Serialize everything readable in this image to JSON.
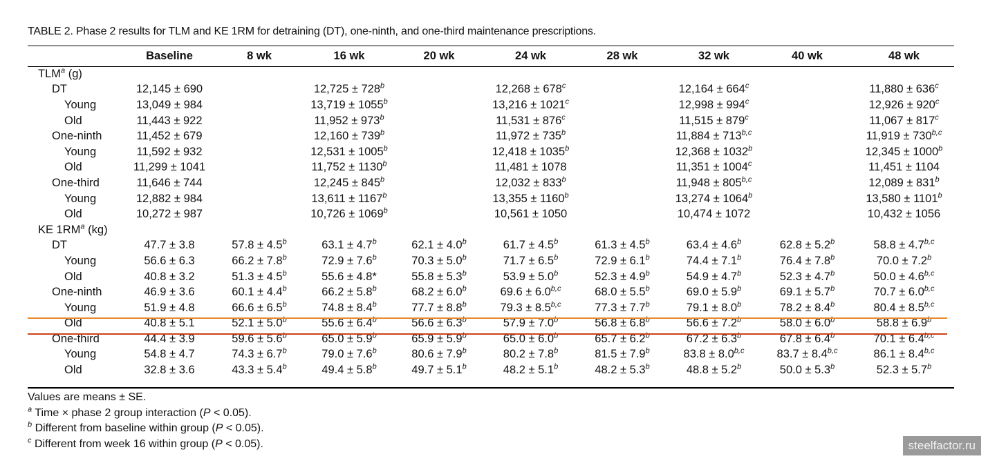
{
  "title": "TABLE 2. Phase 2 results for TLM and KE 1RM for detraining (DT), one-ninth, and one-third maintenance prescriptions.",
  "columns": [
    "",
    "Baseline",
    "8 wk",
    "16 wk",
    "20 wk",
    "24 wk",
    "28 wk",
    "32 wk",
    "40 wk",
    "48 wk"
  ],
  "sections": [
    {
      "label": "TLM",
      "label_sup": "a",
      "unit": " (g)",
      "rows": [
        {
          "label": "DT",
          "level": 1,
          "cells": [
            [
              "12,145 ± 690",
              ""
            ],
            [
              "",
              ""
            ],
            [
              "12,725 ± 728",
              "b"
            ],
            [
              "",
              ""
            ],
            [
              "12,268 ± 678",
              "c"
            ],
            [
              "",
              ""
            ],
            [
              "12,164 ± 664",
              "c"
            ],
            [
              "",
              ""
            ],
            [
              "11,880 ± 636",
              "c"
            ]
          ]
        },
        {
          "label": "Young",
          "level": 2,
          "cells": [
            [
              "13,049 ± 984",
              ""
            ],
            [
              "",
              ""
            ],
            [
              "13,719 ± 1055",
              "b"
            ],
            [
              "",
              ""
            ],
            [
              "13,216 ± 1021",
              "c"
            ],
            [
              "",
              ""
            ],
            [
              "12,998 ± 994",
              "c"
            ],
            [
              "",
              ""
            ],
            [
              "12,926 ± 920",
              "c"
            ]
          ]
        },
        {
          "label": "Old",
          "level": 2,
          "cells": [
            [
              "11,443 ± 922",
              ""
            ],
            [
              "",
              ""
            ],
            [
              "11,952 ± 973",
              "b"
            ],
            [
              "",
              ""
            ],
            [
              "11,531 ± 876",
              "c"
            ],
            [
              "",
              ""
            ],
            [
              "11,515 ± 879",
              "c"
            ],
            [
              "",
              ""
            ],
            [
              "11,067 ± 817",
              "c"
            ]
          ]
        },
        {
          "label": "One-ninth",
          "level": 1,
          "cells": [
            [
              "11,452 ± 679",
              ""
            ],
            [
              "",
              ""
            ],
            [
              "12,160 ± 739",
              "b"
            ],
            [
              "",
              ""
            ],
            [
              "11,972 ± 735",
              "b"
            ],
            [
              "",
              ""
            ],
            [
              "11,884 ± 713",
              "b,c"
            ],
            [
              "",
              ""
            ],
            [
              "11,919 ± 730",
              "b,c"
            ]
          ]
        },
        {
          "label": "Young",
          "level": 2,
          "cells": [
            [
              "11,592 ± 932",
              ""
            ],
            [
              "",
              ""
            ],
            [
              "12,531 ± 1005",
              "b"
            ],
            [
              "",
              ""
            ],
            [
              "12,418 ± 1035",
              "b"
            ],
            [
              "",
              ""
            ],
            [
              "12,368 ± 1032",
              "b"
            ],
            [
              "",
              ""
            ],
            [
              "12,345 ± 1000",
              "b"
            ]
          ]
        },
        {
          "label": "Old",
          "level": 2,
          "cells": [
            [
              "11,299 ± 1041",
              ""
            ],
            [
              "",
              ""
            ],
            [
              "11,752 ± 1130",
              "b"
            ],
            [
              "",
              ""
            ],
            [
              "11,481 ± 1078",
              ""
            ],
            [
              "",
              ""
            ],
            [
              "11,351 ± 1004",
              "c"
            ],
            [
              "",
              ""
            ],
            [
              "11,451 ± 1104",
              ""
            ]
          ]
        },
        {
          "label": "One-third",
          "level": 1,
          "cells": [
            [
              "11,646 ± 744",
              ""
            ],
            [
              "",
              ""
            ],
            [
              "12,245 ± 845",
              "b"
            ],
            [
              "",
              ""
            ],
            [
              "12,032 ± 833",
              "b"
            ],
            [
              "",
              ""
            ],
            [
              "11,948 ± 805",
              "b,c"
            ],
            [
              "",
              ""
            ],
            [
              "12,089 ± 831",
              "b"
            ]
          ]
        },
        {
          "label": "Young",
          "level": 2,
          "cells": [
            [
              "12,882 ± 984",
              ""
            ],
            [
              "",
              ""
            ],
            [
              "13,611 ± 1167",
              "b"
            ],
            [
              "",
              ""
            ],
            [
              "13,355 ± 1160",
              "b"
            ],
            [
              "",
              ""
            ],
            [
              "13,274 ± 1064",
              "b"
            ],
            [
              "",
              ""
            ],
            [
              "13,580 ± 1101",
              "b"
            ]
          ]
        },
        {
          "label": "Old",
          "level": 2,
          "cells": [
            [
              "10,272 ± 987",
              ""
            ],
            [
              "",
              ""
            ],
            [
              "10,726 ± 1069",
              "b"
            ],
            [
              "",
              ""
            ],
            [
              "10,561 ± 1050",
              ""
            ],
            [
              "",
              ""
            ],
            [
              "10,474 ± 1072",
              ""
            ],
            [
              "",
              ""
            ],
            [
              "10,432 ± 1056",
              ""
            ]
          ]
        }
      ]
    },
    {
      "label": "KE 1RM",
      "label_sup": "a",
      "unit": " (kg)",
      "rows": [
        {
          "label": "DT",
          "level": 1,
          "cells": [
            [
              "47.7 ± 3.8",
              ""
            ],
            [
              "57.8 ± 4.5",
              "b"
            ],
            [
              "63.1 ± 4.7",
              "b"
            ],
            [
              "62.1 ± 4.0",
              "b"
            ],
            [
              "61.7 ± 4.5",
              "b"
            ],
            [
              "61.3 ± 4.5",
              "b"
            ],
            [
              "63.4 ± 4.6",
              "b"
            ],
            [
              "62.8 ± 5.2",
              "b"
            ],
            [
              "58.8 ± 4.7",
              "b,c"
            ]
          ]
        },
        {
          "label": "Young",
          "level": 2,
          "cells": [
            [
              "56.6 ± 6.3",
              ""
            ],
            [
              "66.2 ± 7.8",
              "b"
            ],
            [
              "72.9 ± 7.6",
              "b"
            ],
            [
              "70.3 ± 5.0",
              "b"
            ],
            [
              "71.7 ± 6.5",
              "b"
            ],
            [
              "72.9 ± 6.1",
              "b"
            ],
            [
              "74.4 ± 7.1",
              "b"
            ],
            [
              "76.4 ± 7.8",
              "b"
            ],
            [
              "70.0 ± 7.2",
              "b"
            ]
          ]
        },
        {
          "label": "Old",
          "level": 2,
          "cells": [
            [
              "40.8 ± 3.2",
              ""
            ],
            [
              "51.3 ± 4.5",
              "b"
            ],
            [
              "55.6 ± 4.8*",
              ""
            ],
            [
              "55.8 ± 5.3",
              "b"
            ],
            [
              "53.9 ± 5.0",
              "b"
            ],
            [
              "52.3 ± 4.9",
              "b"
            ],
            [
              "54.9 ± 4.7",
              "b"
            ],
            [
              "52.3 ± 4.7",
              "b"
            ],
            [
              "50.0 ± 4.6",
              "b,c"
            ]
          ]
        },
        {
          "label": "One-ninth",
          "level": 1,
          "cells": [
            [
              "46.9 ± 3.6",
              ""
            ],
            [
              "60.1 ± 4.4",
              "b"
            ],
            [
              "66.2 ± 5.8",
              "b"
            ],
            [
              "68.2 ± 6.0",
              "b"
            ],
            [
              "69.6 ± 6.0",
              "b,c"
            ],
            [
              "68.0 ± 5.5",
              "b"
            ],
            [
              "69.0 ± 5.9",
              "b"
            ],
            [
              "69.1 ± 5.7",
              "b"
            ],
            [
              "70.7 ± 6.0",
              "b,c"
            ]
          ]
        },
        {
          "label": "Young",
          "level": 2,
          "cells": [
            [
              "51.9 ± 4.8",
              ""
            ],
            [
              "66.6 ± 6.5",
              "b"
            ],
            [
              "74.8 ± 8.4",
              "b"
            ],
            [
              "77.7 ± 8.8",
              "b"
            ],
            [
              "79.3 ± 8.5",
              "b,c"
            ],
            [
              "77.3 ± 7.7",
              "b"
            ],
            [
              "79.1 ± 8.0",
              "b"
            ],
            [
              "78.2 ± 8.4",
              "b"
            ],
            [
              "80.4 ± 8.5",
              "b,c"
            ]
          ]
        },
        {
          "label": "Old",
          "level": 2,
          "cells": [
            [
              "40.8 ± 5.1",
              ""
            ],
            [
              "52.1 ± 5.0",
              "b"
            ],
            [
              "55.6 ± 6.4",
              "b"
            ],
            [
              "56.6 ± 6.3",
              "b"
            ],
            [
              "57.9 ± 7.0",
              "b"
            ],
            [
              "56.8 ± 6.8",
              "b"
            ],
            [
              "56.6 ± 7.2",
              "b"
            ],
            [
              "58.0 ± 6.0",
              "b"
            ],
            [
              "58.8 ± 6.9",
              "b"
            ]
          ]
        },
        {
          "label": "One-third",
          "level": 1,
          "cells": [
            [
              "44.4 ± 3.9",
              ""
            ],
            [
              "59.6 ± 5.6",
              "b"
            ],
            [
              "65.0 ± 5.9",
              "b"
            ],
            [
              "65.9 ± 5.9",
              "b"
            ],
            [
              "65.0 ± 6.0",
              "b"
            ],
            [
              "65.7 ± 6.2",
              "b"
            ],
            [
              "67.2 ± 6.3",
              "b"
            ],
            [
              "67.8 ± 6.4",
              "b"
            ],
            [
              "70.1 ± 6.4",
              "b,c"
            ]
          ]
        },
        {
          "label": "Young",
          "level": 2,
          "cells": [
            [
              "54.8 ± 4.7",
              ""
            ],
            [
              "74.3 ± 6.7",
              "b"
            ],
            [
              "79.0 ± 7.6",
              "b"
            ],
            [
              "80.6 ± 7.9",
              "b"
            ],
            [
              "80.2 ± 7.8",
              "b"
            ],
            [
              "81.5 ± 7.9",
              "b"
            ],
            [
              "83.8 ± 8.0",
              "b,c"
            ],
            [
              "83.7 ± 8.4",
              "b,c"
            ],
            [
              "86.1 ± 8.4",
              "b,c"
            ]
          ]
        },
        {
          "label": "Old",
          "level": 2,
          "cells": [
            [
              "32.8 ± 3.6",
              ""
            ],
            [
              "43.3 ± 5.4",
              "b"
            ],
            [
              "49.4 ± 5.8",
              "b"
            ],
            [
              "49.7 ± 5.1",
              "b"
            ],
            [
              "48.2 ± 5.1",
              "b"
            ],
            [
              "48.2 ± 5.3",
              "b"
            ],
            [
              "48.8 ± 5.2",
              "b"
            ],
            [
              "50.0 ± 5.3",
              "b"
            ],
            [
              "52.3 ± 5.7",
              "b"
            ]
          ]
        }
      ]
    }
  ],
  "footnotes": [
    {
      "sup": "",
      "pre": "Values are means ± SE.",
      "p": "",
      "post": ""
    },
    {
      "sup": "a",
      "pre": " Time × phase 2 group interaction (",
      "p": "P",
      "post": " < 0.05)."
    },
    {
      "sup": "b",
      "pre": " Different from baseline within group (",
      "p": "P",
      "post": " < 0.05)."
    },
    {
      "sup": "c",
      "pre": " Different from week 16 within group (",
      "p": "P",
      "post": " < 0.05)."
    }
  ],
  "watermark": "steelfactor.ru",
  "colors": {
    "highlight_top": "#e8892a",
    "highlight_bottom": "#c9421a",
    "watermark_bg": "#9a9a9a"
  }
}
